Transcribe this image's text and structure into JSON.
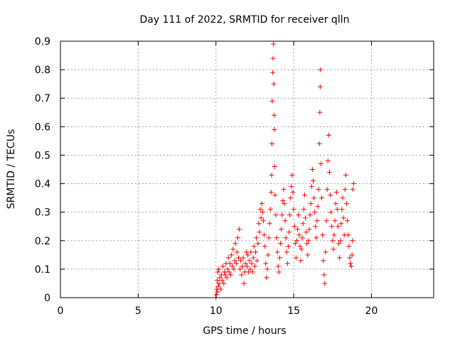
{
  "chart_data": {
    "type": "scatter",
    "title": "Day 111 of 2022, SRMTID for receiver qlln",
    "xlabel": "GPS time / hours",
    "ylabel": "SRMTID / TECUs",
    "xlim": [
      0,
      24
    ],
    "ylim": [
      0,
      0.9
    ],
    "xticks": [
      0,
      5,
      10,
      15,
      20
    ],
    "xtick_labels": [
      "0",
      "5",
      "10",
      "15",
      "20"
    ],
    "yticks": [
      0,
      0.1,
      0.2,
      0.3,
      0.4,
      0.5,
      0.6,
      0.7,
      0.8,
      0.9
    ],
    "ytick_labels": [
      "0",
      "0.1",
      "0.2",
      "0.3",
      "0.4",
      "0.5",
      "0.6",
      "0.7",
      "0.8",
      "0.9"
    ],
    "grid": true,
    "marker": "+",
    "series": [
      {
        "name": "SRMTID",
        "color": "#ff0000",
        "points": [
          [
            10.0,
            0.0
          ],
          [
            10.02,
            0.01
          ],
          [
            10.05,
            0.03
          ],
          [
            10.08,
            0.06
          ],
          [
            10.1,
            0.02
          ],
          [
            10.12,
            0.09
          ],
          [
            10.15,
            0.04
          ],
          [
            10.18,
            0.1
          ],
          [
            10.2,
            0.05
          ],
          [
            10.25,
            0.07
          ],
          [
            10.3,
            0.03
          ],
          [
            10.35,
            0.08
          ],
          [
            10.4,
            0.06
          ],
          [
            10.45,
            0.11
          ],
          [
            10.5,
            0.05
          ],
          [
            10.55,
            0.09
          ],
          [
            10.6,
            0.08
          ],
          [
            10.65,
            0.12
          ],
          [
            10.7,
            0.07
          ],
          [
            10.75,
            0.1
          ],
          [
            10.8,
            0.14
          ],
          [
            10.85,
            0.09
          ],
          [
            10.9,
            0.12
          ],
          [
            10.95,
            0.08
          ],
          [
            11.0,
            0.15
          ],
          [
            11.05,
            0.11
          ],
          [
            11.1,
            0.17
          ],
          [
            11.15,
            0.1
          ],
          [
            11.2,
            0.13
          ],
          [
            11.25,
            0.19
          ],
          [
            11.3,
            0.12
          ],
          [
            11.35,
            0.16
          ],
          [
            11.4,
            0.21
          ],
          [
            11.45,
            0.14
          ],
          [
            11.5,
            0.24
          ],
          [
            11.55,
            0.1
          ],
          [
            11.6,
            0.13
          ],
          [
            11.65,
            0.08
          ],
          [
            11.7,
            0.11
          ],
          [
            11.75,
            0.14
          ],
          [
            11.8,
            0.05
          ],
          [
            11.85,
            0.09
          ],
          [
            11.9,
            0.12
          ],
          [
            11.95,
            0.16
          ],
          [
            12.0,
            0.11
          ],
          [
            12.05,
            0.15
          ],
          [
            12.1,
            0.09
          ],
          [
            12.15,
            0.13
          ],
          [
            12.2,
            0.1
          ],
          [
            12.25,
            0.16
          ],
          [
            12.3,
            0.12
          ],
          [
            12.35,
            0.09
          ],
          [
            12.4,
            0.14
          ],
          [
            12.45,
            0.18
          ],
          [
            12.5,
            0.11
          ],
          [
            12.55,
            0.16
          ],
          [
            12.6,
            0.21
          ],
          [
            12.65,
            0.13
          ],
          [
            12.7,
            0.19
          ],
          [
            12.75,
            0.26
          ],
          [
            12.8,
            0.23
          ],
          [
            12.85,
            0.31
          ],
          [
            12.9,
            0.28
          ],
          [
            12.95,
            0.33
          ],
          [
            13.0,
            0.3
          ],
          [
            13.05,
            0.27
          ],
          [
            13.1,
            0.22
          ],
          [
            13.15,
            0.18
          ],
          [
            13.2,
            0.12
          ],
          [
            13.25,
            0.07
          ],
          [
            13.3,
            0.1
          ],
          [
            13.35,
            0.15
          ],
          [
            13.4,
            0.21
          ],
          [
            13.45,
            0.26
          ],
          [
            13.5,
            0.31
          ],
          [
            13.55,
            0.37
          ],
          [
            13.58,
            0.43
          ],
          [
            13.6,
            0.54
          ],
          [
            13.62,
            0.69
          ],
          [
            13.65,
            0.79
          ],
          [
            13.67,
            0.84
          ],
          [
            13.7,
            0.89
          ],
          [
            13.72,
            0.75
          ],
          [
            13.74,
            0.64
          ],
          [
            13.76,
            0.59
          ],
          [
            13.78,
            0.46
          ],
          [
            13.8,
            0.36
          ],
          [
            13.85,
            0.29
          ],
          [
            13.9,
            0.21
          ],
          [
            13.95,
            0.16
          ],
          [
            14.0,
            0.11
          ],
          [
            14.05,
            0.09
          ],
          [
            14.1,
            0.14
          ],
          [
            14.15,
            0.19
          ],
          [
            14.2,
            0.24
          ],
          [
            14.25,
            0.29
          ],
          [
            14.3,
            0.34
          ],
          [
            14.35,
            0.38
          ],
          [
            14.4,
            0.33
          ],
          [
            14.45,
            0.27
          ],
          [
            14.5,
            0.21
          ],
          [
            14.55,
            0.16
          ],
          [
            14.6,
            0.12
          ],
          [
            14.65,
            0.18
          ],
          [
            14.7,
            0.23
          ],
          [
            14.75,
            0.29
          ],
          [
            14.8,
            0.35
          ],
          [
            14.85,
            0.39
          ],
          [
            14.9,
            0.43
          ],
          [
            14.95,
            0.37
          ],
          [
            15.0,
            0.31
          ],
          [
            15.05,
            0.25
          ],
          [
            15.1,
            0.19
          ],
          [
            15.15,
            0.14
          ],
          [
            15.2,
            0.2
          ],
          [
            15.25,
            0.24
          ],
          [
            15.3,
            0.29
          ],
          [
            15.35,
            0.22
          ],
          [
            15.4,
            0.18
          ],
          [
            15.45,
            0.13
          ],
          [
            15.5,
            0.17
          ],
          [
            15.55,
            0.21
          ],
          [
            15.6,
            0.26
          ],
          [
            15.65,
            0.31
          ],
          [
            15.7,
            0.36
          ],
          [
            15.75,
            0.28
          ],
          [
            15.8,
            0.23
          ],
          [
            15.85,
            0.19
          ],
          [
            15.9,
            0.15
          ],
          [
            15.95,
            0.2
          ],
          [
            16.0,
            0.24
          ],
          [
            16.05,
            0.29
          ],
          [
            16.1,
            0.33
          ],
          [
            16.15,
            0.39
          ],
          [
            16.2,
            0.45
          ],
          [
            16.25,
            0.41
          ],
          [
            16.3,
            0.35
          ],
          [
            16.35,
            0.3
          ],
          [
            16.4,
            0.25
          ],
          [
            16.45,
            0.21
          ],
          [
            16.5,
            0.27
          ],
          [
            16.55,
            0.32
          ],
          [
            16.6,
            0.38
          ],
          [
            16.65,
            0.54
          ],
          [
            16.68,
            0.65
          ],
          [
            16.7,
            0.74
          ],
          [
            16.72,
            0.8
          ],
          [
            16.75,
            0.47
          ],
          [
            16.8,
            0.35
          ],
          [
            16.85,
            0.22
          ],
          [
            16.9,
            0.13
          ],
          [
            16.95,
            0.08
          ],
          [
            17.0,
            0.05
          ],
          [
            17.05,
            0.16
          ],
          [
            17.1,
            0.27
          ],
          [
            17.15,
            0.38
          ],
          [
            17.2,
            0.48
          ],
          [
            17.25,
            0.57
          ],
          [
            17.3,
            0.44
          ],
          [
            17.35,
            0.36
          ],
          [
            17.4,
            0.3
          ],
          [
            17.45,
            0.25
          ],
          [
            17.5,
            0.2
          ],
          [
            17.55,
            0.17
          ],
          [
            17.6,
            0.22
          ],
          [
            17.65,
            0.27
          ],
          [
            17.7,
            0.33
          ],
          [
            17.75,
            0.37
          ],
          [
            17.8,
            0.31
          ],
          [
            17.85,
            0.25
          ],
          [
            17.9,
            0.19
          ],
          [
            17.95,
            0.14
          ],
          [
            18.0,
            0.2
          ],
          [
            18.05,
            0.26
          ],
          [
            18.1,
            0.31
          ],
          [
            18.15,
            0.35
          ],
          [
            18.2,
            0.28
          ],
          [
            18.25,
            0.22
          ],
          [
            18.3,
            0.38
          ],
          [
            18.35,
            0.43
          ],
          [
            18.4,
            0.33
          ],
          [
            18.45,
            0.27
          ],
          [
            18.5,
            0.22
          ],
          [
            18.55,
            0.18
          ],
          [
            18.6,
            0.14
          ],
          [
            18.65,
            0.12
          ],
          [
            18.7,
            0.11
          ],
          [
            18.75,
            0.15
          ],
          [
            18.78,
            0.2
          ],
          [
            18.8,
            0.38
          ],
          [
            18.85,
            0.4
          ]
        ]
      }
    ]
  }
}
